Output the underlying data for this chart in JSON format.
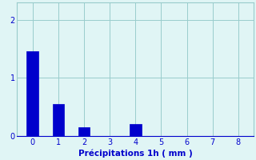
{
  "categories": [
    0,
    1,
    2,
    3,
    4,
    5,
    6,
    7,
    8
  ],
  "values": [
    1.45,
    0.55,
    0.15,
    0,
    0.2,
    0,
    0,
    0,
    0
  ],
  "bar_color": "#0000cc",
  "bar_edge_color": "#0000aa",
  "background_color": "#e0f5f5",
  "grid_color": "#99cccc",
  "xlabel": "Précipitations 1h ( mm )",
  "xlabel_color": "#0000cc",
  "tick_color": "#0000cc",
  "ylim": [
    0,
    2.3
  ],
  "xlim": [
    -0.6,
    8.6
  ],
  "yticks": [
    0,
    1,
    2
  ],
  "xticks": [
    0,
    1,
    2,
    3,
    4,
    5,
    6,
    7,
    8
  ],
  "bar_width": 0.45
}
